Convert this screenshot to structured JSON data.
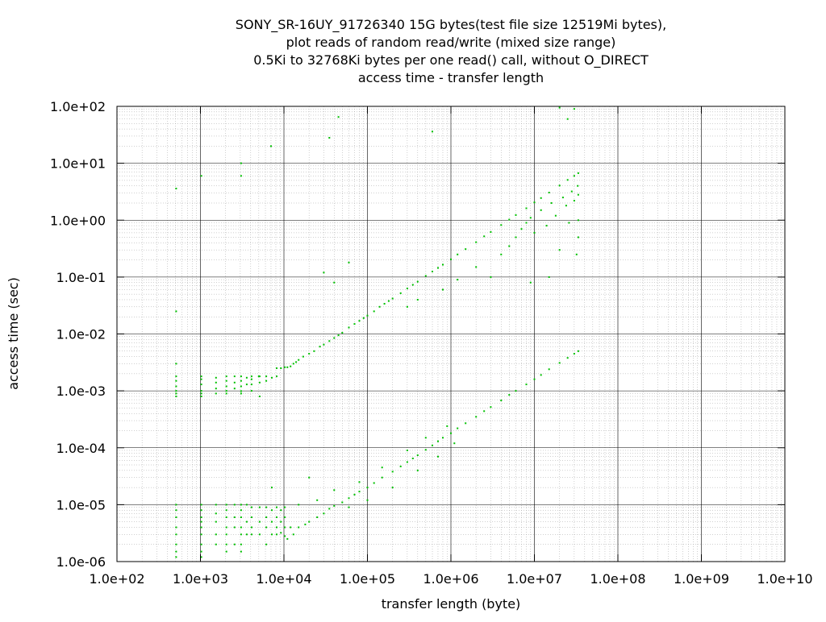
{
  "colors": {
    "series": "#00c000",
    "grid_major": "#000000",
    "grid_minor": "#a0a0a0",
    "background": "#ffffff"
  },
  "chart_data": {
    "type": "scatter",
    "title_lines": [
      "SONY_SR-16UY_91726340 15G bytes(test file size 12519Mi bytes),",
      "plot reads of random read/write (mixed size range)",
      "0.5Ki to 32768Ki bytes per one read() call, without O_DIRECT",
      "access time - transfer length"
    ],
    "xlabel": "transfer length (byte)",
    "ylabel": "access time (sec)",
    "xscale": "log",
    "yscale": "log",
    "xlim": [
      100,
      10000000000
    ],
    "ylim": [
      1e-06,
      100
    ],
    "xticks": [
      100,
      1000,
      10000,
      100000,
      1000000,
      10000000,
      100000000,
      1000000000,
      10000000000
    ],
    "xtick_labels": [
      "1.0e+02",
      "1.0e+03",
      "1.0e+04",
      "1.0e+05",
      "1.0e+06",
      "1.0e+07",
      "1.0e+08",
      "1.0e+09",
      "1.0e+10"
    ],
    "yticks": [
      100,
      10,
      1,
      0.1,
      0.01,
      0.001,
      0.0001,
      1e-05,
      1e-06
    ],
    "ytick_labels": [
      "1.0e+02",
      "1.0e+01",
      "1.0e+00",
      "1.0e-01",
      "1.0e-02",
      "1.0e-03",
      "1.0e-04",
      "1.0e-05",
      "1.0e-06"
    ],
    "grid": true,
    "minor_grid": true,
    "marker": "dot",
    "series": [
      {
        "points": [
          [
            512,
            0.0018
          ],
          [
            512,
            0.0015
          ],
          [
            512,
            0.0012
          ],
          [
            512,
            0.001
          ],
          [
            512,
            0.0009
          ],
          [
            512,
            0.0008
          ],
          [
            512,
            1e-05
          ],
          [
            512,
            8e-06
          ],
          [
            512,
            6e-06
          ],
          [
            512,
            4e-06
          ],
          [
            512,
            3e-06
          ],
          [
            512,
            2e-06
          ],
          [
            512,
            1.5e-06
          ],
          [
            512,
            1.2e-06
          ],
          [
            512,
            3.6
          ],
          [
            512,
            0.025
          ],
          [
            512,
            0.003
          ],
          [
            1024,
            0.0018
          ],
          [
            1024,
            0.0016
          ],
          [
            1024,
            0.0013
          ],
          [
            1024,
            0.001
          ],
          [
            1024,
            0.0009
          ],
          [
            1024,
            0.0008
          ],
          [
            1024,
            1e-05
          ],
          [
            1024,
            8e-06
          ],
          [
            1024,
            6e-06
          ],
          [
            1024,
            5e-06
          ],
          [
            1024,
            4e-06
          ],
          [
            1024,
            3e-06
          ],
          [
            1024,
            2e-06
          ],
          [
            1024,
            1.5e-06
          ],
          [
            1024,
            1.2e-06
          ],
          [
            1024,
            6.0
          ],
          [
            1536,
            0.0017
          ],
          [
            1536,
            0.0014
          ],
          [
            1536,
            0.0011
          ],
          [
            1536,
            0.0009
          ],
          [
            1536,
            1e-05
          ],
          [
            1536,
            7e-06
          ],
          [
            1536,
            5e-06
          ],
          [
            1536,
            3e-06
          ],
          [
            1536,
            2e-06
          ],
          [
            2048,
            0.0018
          ],
          [
            2048,
            0.0015
          ],
          [
            2048,
            0.0012
          ],
          [
            2048,
            0.001
          ],
          [
            2048,
            0.0009
          ],
          [
            2048,
            1e-05
          ],
          [
            2048,
            8e-06
          ],
          [
            2048,
            6e-06
          ],
          [
            2048,
            4e-06
          ],
          [
            2048,
            3e-06
          ],
          [
            2048,
            2e-06
          ],
          [
            2048,
            1.5e-06
          ],
          [
            2560,
            0.0018
          ],
          [
            2560,
            0.0014
          ],
          [
            2560,
            0.0011
          ],
          [
            2560,
            1e-05
          ],
          [
            2560,
            6e-06
          ],
          [
            2560,
            4e-06
          ],
          [
            2560,
            2e-06
          ],
          [
            3072,
            0.0018
          ],
          [
            3072,
            0.0015
          ],
          [
            3072,
            0.0012
          ],
          [
            3072,
            0.00099
          ],
          [
            3072,
            0.0009
          ],
          [
            3072,
            1e-05
          ],
          [
            3072,
            8e-06
          ],
          [
            3072,
            6e-06
          ],
          [
            3072,
            4e-06
          ],
          [
            3072,
            3e-06
          ],
          [
            3072,
            2e-06
          ],
          [
            3072,
            1.5e-06
          ],
          [
            3072,
            6.0
          ],
          [
            3072,
            10.0
          ],
          [
            3584,
            0.0017
          ],
          [
            3584,
            0.0013
          ],
          [
            3584,
            1e-05
          ],
          [
            3584,
            5e-06
          ],
          [
            3584,
            3e-06
          ],
          [
            4096,
            0.0018
          ],
          [
            4096,
            0.0016
          ],
          [
            4096,
            0.0013
          ],
          [
            4096,
            0.001
          ],
          [
            4096,
            9e-06
          ],
          [
            4096,
            6e-06
          ],
          [
            4096,
            4e-06
          ],
          [
            4096,
            3e-06
          ],
          [
            5120,
            0.0018
          ],
          [
            5120,
            0.0014
          ],
          [
            5120,
            9e-06
          ],
          [
            5120,
            5e-06
          ],
          [
            5120,
            3e-06
          ],
          [
            5120,
            0.0008
          ],
          [
            6144,
            0.0018
          ],
          [
            6144,
            0.0015
          ],
          [
            6144,
            9e-06
          ],
          [
            6144,
            6e-06
          ],
          [
            6144,
            4e-06
          ],
          [
            6144,
            2e-06
          ],
          [
            7168,
            0.0017
          ],
          [
            7168,
            8e-06
          ],
          [
            7168,
            5e-06
          ],
          [
            7168,
            3e-06
          ],
          [
            7168,
            2e-05
          ],
          [
            8192,
            0.0025
          ],
          [
            8192,
            0.0018
          ],
          [
            8192,
            9e-06
          ],
          [
            8192,
            6e-06
          ],
          [
            8192,
            4e-06
          ],
          [
            8192,
            3e-06
          ],
          [
            9216,
            0.0025
          ],
          [
            9216,
            8e-06
          ],
          [
            9216,
            5e-06
          ],
          [
            9216,
            3.2e-06
          ],
          [
            10240,
            0.0026
          ],
          [
            10240,
            9e-06
          ],
          [
            10240,
            6e-06
          ],
          [
            10240,
            4e-06
          ],
          [
            10240,
            2.8e-06
          ],
          [
            7000,
            20.0
          ],
          [
            35000,
            28.0
          ],
          [
            45000,
            65.0
          ],
          [
            600000,
            36.0
          ],
          [
            11000,
            0.0026
          ],
          [
            12000,
            0.0027
          ],
          [
            13000,
            0.003
          ],
          [
            14000,
            0.0032
          ],
          [
            15000,
            0.0035
          ],
          [
            17000,
            0.004
          ],
          [
            20000,
            0.0045
          ],
          [
            23000,
            0.005
          ],
          [
            27000,
            0.006
          ],
          [
            30000,
            0.0065
          ],
          [
            35000,
            0.0075
          ],
          [
            40000,
            0.0085
          ],
          [
            45000,
            0.0095
          ],
          [
            50000,
            0.0105
          ],
          [
            60000,
            0.013
          ],
          [
            70000,
            0.015
          ],
          [
            80000,
            0.017
          ],
          [
            90000,
            0.019
          ],
          [
            100000,
            0.021
          ],
          [
            120000,
            0.025
          ],
          [
            140000,
            0.03
          ],
          [
            160000,
            0.034
          ],
          [
            180000,
            0.038
          ],
          [
            200000,
            0.042
          ],
          [
            250000,
            0.052
          ],
          [
            300000,
            0.063
          ],
          [
            350000,
            0.073
          ],
          [
            400000,
            0.083
          ],
          [
            500000,
            0.105
          ],
          [
            600000,
            0.125
          ],
          [
            700000,
            0.145
          ],
          [
            800000,
            0.165
          ],
          [
            1000000,
            0.205
          ],
          [
            1200000,
            0.25
          ],
          [
            1500000,
            0.31
          ],
          [
            2000000,
            0.41
          ],
          [
            2500000,
            0.52
          ],
          [
            3000000,
            0.62
          ],
          [
            4000000,
            0.82
          ],
          [
            5000000,
            1.02
          ],
          [
            6000000,
            1.23
          ],
          [
            8000000,
            1.62
          ],
          [
            10000000,
            2.05
          ],
          [
            12000000,
            2.45
          ],
          [
            15000000,
            3.05
          ],
          [
            20000000,
            4.05
          ],
          [
            25000000,
            5.1
          ],
          [
            30000000,
            6.0
          ],
          [
            33554432,
            6.7
          ],
          [
            300000,
            0.03
          ],
          [
            400000,
            0.04
          ],
          [
            800000,
            0.06
          ],
          [
            1200000,
            0.09
          ],
          [
            2000000,
            0.15
          ],
          [
            3000000,
            0.1
          ],
          [
            4000000,
            0.25
          ],
          [
            5000000,
            0.35
          ],
          [
            6000000,
            0.5
          ],
          [
            7000000,
            0.7
          ],
          [
            8000000,
            0.9
          ],
          [
            9000000,
            1.1
          ],
          [
            10000000,
            0.6
          ],
          [
            12000000,
            1.5
          ],
          [
            14000000,
            0.8
          ],
          [
            16000000,
            2.0
          ],
          [
            18000000,
            1.2
          ],
          [
            20000000,
            0.3
          ],
          [
            22000000,
            2.5
          ],
          [
            24000000,
            1.8
          ],
          [
            26000000,
            0.9
          ],
          [
            28000000,
            3.2
          ],
          [
            30000000,
            2.2
          ],
          [
            32000000,
            0.25
          ],
          [
            33000000,
            4.0
          ],
          [
            33554432,
            1.0
          ],
          [
            33554432,
            0.5
          ],
          [
            33554432,
            2.8
          ],
          [
            15000000,
            0.1
          ],
          [
            9000000,
            0.08
          ],
          [
            20000000,
            95.0
          ],
          [
            30000000,
            90.0
          ],
          [
            25000000,
            60.0
          ],
          [
            30000,
            0.12
          ],
          [
            60000,
            0.18
          ],
          [
            40000,
            0.08
          ],
          [
            5000,
            0.0018
          ],
          [
            20000,
            3e-05
          ],
          [
            11000,
            2.5e-06
          ],
          [
            12000,
            4e-06
          ],
          [
            13000,
            3e-06
          ],
          [
            15000,
            4e-06
          ],
          [
            18000,
            4.5e-06
          ],
          [
            20000,
            5e-06
          ],
          [
            25000,
            6e-06
          ],
          [
            30000,
            7e-06
          ],
          [
            35000,
            8.5e-06
          ],
          [
            40000,
            9.5e-06
          ],
          [
            50000,
            1.1e-05
          ],
          [
            60000,
            1.3e-05
          ],
          [
            70000,
            1.5e-05
          ],
          [
            80000,
            1.7e-05
          ],
          [
            100000,
            2e-05
          ],
          [
            120000,
            2.4e-05
          ],
          [
            150000,
            3e-05
          ],
          [
            200000,
            3.8e-05
          ],
          [
            250000,
            4.7e-05
          ],
          [
            300000,
            5.6e-05
          ],
          [
            350000,
            6.5e-05
          ],
          [
            400000,
            7.4e-05
          ],
          [
            500000,
            9.2e-05
          ],
          [
            600000,
            0.00011
          ],
          [
            700000,
            0.00013
          ],
          [
            800000,
            0.00015
          ],
          [
            1000000,
            0.00018
          ],
          [
            1200000,
            0.00022
          ],
          [
            1500000,
            0.00027
          ],
          [
            2000000,
            0.00035
          ],
          [
            2500000,
            0.00044
          ],
          [
            3000000,
            0.00052
          ],
          [
            4000000,
            0.00068
          ],
          [
            5000000,
            0.00085
          ],
          [
            6000000,
            0.001
          ],
          [
            8000000,
            0.0013
          ],
          [
            10000000,
            0.0016
          ],
          [
            12000000,
            0.0019
          ],
          [
            15000000,
            0.0024
          ],
          [
            20000000,
            0.0031
          ],
          [
            25000000,
            0.0038
          ],
          [
            30000000,
            0.0045
          ],
          [
            33554432,
            0.005
          ],
          [
            15000,
            1e-05
          ],
          [
            25000,
            1.2e-05
          ],
          [
            40000,
            1.8e-05
          ],
          [
            60000,
            9e-06
          ],
          [
            80000,
            2.5e-05
          ],
          [
            100000,
            1.2e-05
          ],
          [
            150000,
            4.5e-05
          ],
          [
            200000,
            2e-05
          ],
          [
            300000,
            9e-05
          ],
          [
            400000,
            4e-05
          ],
          [
            500000,
            0.00015
          ],
          [
            700000,
            7e-05
          ],
          [
            900000,
            0.00024
          ],
          [
            1100000,
            0.00012
          ]
        ]
      }
    ]
  }
}
